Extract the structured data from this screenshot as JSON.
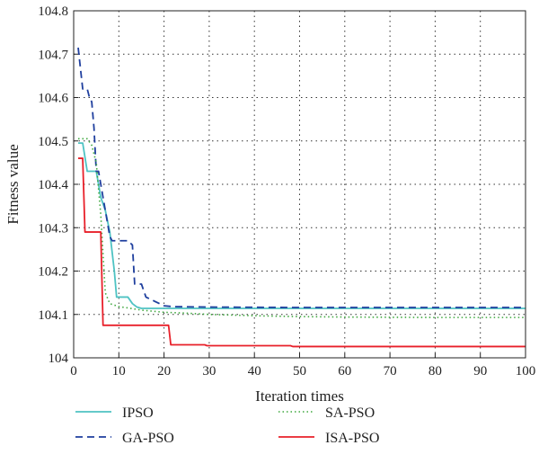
{
  "chart_data": {
    "type": "line",
    "xlabel": "Iteration times",
    "ylabel": "Fitness value",
    "xlim": [
      0,
      100
    ],
    "ylim": [
      104,
      104.8
    ],
    "xticks": [
      "0",
      "10",
      "20",
      "30",
      "40",
      "50",
      "60",
      "70",
      "80",
      "90",
      "100"
    ],
    "yticks": [
      "104",
      "104.1",
      "104.2",
      "104.3",
      "104.4",
      "104.5",
      "104.6",
      "104.7",
      "104.8"
    ],
    "grid": true,
    "legend_position": "bottom",
    "series": [
      {
        "name": "IPSO",
        "color": "#4ec3c3",
        "style": "solid",
        "points": [
          [
            1,
            104.495
          ],
          [
            2,
            104.495
          ],
          [
            3,
            104.43
          ],
          [
            4,
            104.43
          ],
          [
            5,
            104.43
          ],
          [
            6,
            104.37
          ],
          [
            7,
            104.34
          ],
          [
            8,
            104.29
          ],
          [
            9,
            104.2
          ],
          [
            9.5,
            104.14
          ],
          [
            10,
            104.14
          ],
          [
            12,
            104.14
          ],
          [
            13,
            104.125
          ],
          [
            14,
            104.117
          ],
          [
            15,
            104.114
          ],
          [
            20,
            104.114
          ],
          [
            30,
            104.114
          ],
          [
            50,
            104.114
          ],
          [
            100,
            104.114
          ]
        ]
      },
      {
        "name": "GA-PSO",
        "color": "#1f3f9e",
        "style": "dashed",
        "points": [
          [
            1,
            104.715
          ],
          [
            2,
            104.62
          ],
          [
            3,
            104.62
          ],
          [
            3.5,
            104.6
          ],
          [
            4,
            104.59
          ],
          [
            4.5,
            104.53
          ],
          [
            5,
            104.43
          ],
          [
            5.5,
            104.43
          ],
          [
            6,
            104.4
          ],
          [
            7,
            104.34
          ],
          [
            8,
            104.28
          ],
          [
            8.5,
            104.27
          ],
          [
            12,
            104.27
          ],
          [
            13,
            104.26
          ],
          [
            13.5,
            104.17
          ],
          [
            15,
            104.17
          ],
          [
            16,
            104.14
          ],
          [
            18,
            104.13
          ],
          [
            20,
            104.12
          ],
          [
            22,
            104.118
          ],
          [
            30,
            104.117
          ],
          [
            50,
            104.116
          ],
          [
            100,
            104.116
          ]
        ]
      },
      {
        "name": "SA-PSO",
        "color": "#3fa83f",
        "style": "dotted",
        "points": [
          [
            1,
            104.505
          ],
          [
            2,
            104.505
          ],
          [
            3,
            104.505
          ],
          [
            4,
            104.49
          ],
          [
            5,
            104.45
          ],
          [
            6,
            104.33
          ],
          [
            7,
            104.15
          ],
          [
            8,
            104.125
          ],
          [
            10,
            104.118
          ],
          [
            12,
            104.115
          ],
          [
            15,
            104.11
          ],
          [
            20,
            104.105
          ],
          [
            25,
            104.103
          ],
          [
            30,
            104.1
          ],
          [
            40,
            104.097
          ],
          [
            50,
            104.095
          ],
          [
            60,
            104.094
          ],
          [
            80,
            104.093
          ],
          [
            100,
            104.093
          ]
        ]
      },
      {
        "name": "ISA-PSO",
        "color": "#e8202a",
        "style": "solid",
        "points": [
          [
            1,
            104.46
          ],
          [
            2,
            104.46
          ],
          [
            2.5,
            104.29
          ],
          [
            5,
            104.29
          ],
          [
            6,
            104.29
          ],
          [
            6.5,
            104.075
          ],
          [
            7,
            104.075
          ],
          [
            21,
            104.075
          ],
          [
            21.5,
            104.03
          ],
          [
            29,
            104.03
          ],
          [
            29.5,
            104.028
          ],
          [
            48,
            104.028
          ],
          [
            48.5,
            104.026
          ],
          [
            100,
            104.026
          ]
        ]
      }
    ]
  }
}
